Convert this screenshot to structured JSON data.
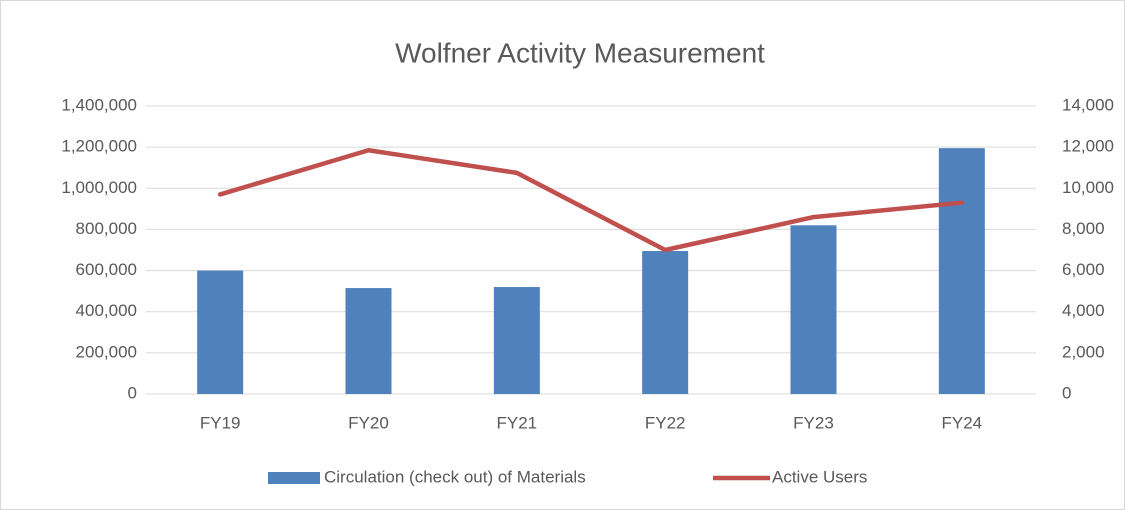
{
  "chart_data": {
    "type": "bar_line",
    "title": "Wolfner Activity Measurement",
    "categories": [
      "FY19",
      "FY20",
      "FY21",
      "FY22",
      "FY23",
      "FY24"
    ],
    "series": [
      {
        "name": "Circulation (check out) of Materials",
        "type": "bar",
        "color": "#4f81bd",
        "values": [
          600000,
          515000,
          520000,
          695000,
          820000,
          1195000
        ]
      },
      {
        "name": "Active Users",
        "type": "line",
        "axis": "y2",
        "color": "#c0504d",
        "values": [
          9700,
          11850,
          10750,
          7000,
          8600,
          9300
        ]
      }
    ],
    "ylim": [
      0,
      1400000
    ],
    "yticks": [
      0,
      {
        "value": 200000,
        "label": "200,000"
      },
      {
        "value": 400000,
        "label": "400,000"
      },
      {
        "value": 600000,
        "label": "600,000"
      },
      {
        "value": 800000,
        "label": "800,000"
      },
      {
        "value": 1000000,
        "label": "1,000,000"
      },
      {
        "value": 1200000,
        "label": "1,200,000"
      },
      {
        "value": 1400000,
        "label": "1,400,000"
      }
    ],
    "y2lim": [
      0,
      14000
    ],
    "y2ticks": [
      0,
      {
        "value": 2000,
        "label": "2,000"
      },
      {
        "value": 4000,
        "label": "4,000"
      },
      {
        "value": 6000,
        "label": "6,000"
      },
      {
        "value": 8000,
        "label": "8,000"
      },
      {
        "value": 10000,
        "label": "10,000"
      },
      {
        "value": 12000,
        "label": "12,000"
      },
      {
        "value": 14000,
        "label": "14,000"
      }
    ],
    "grid": true,
    "legend": "bottom"
  }
}
